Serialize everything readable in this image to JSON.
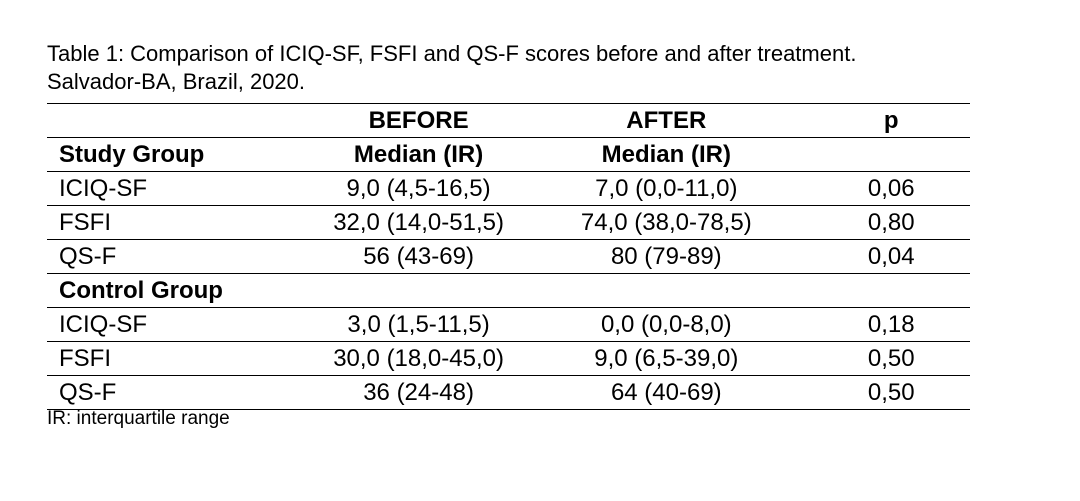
{
  "caption": {
    "line1": "Table 1: Comparison of ICIQ-SF, FSFI and QS-F scores before and after treatment.",
    "line2": "Salvador-BA, Brazil, 2020."
  },
  "header": {
    "before": "BEFORE",
    "after": "AFTER",
    "p": "p",
    "median_before": "Median (IR)",
    "median_after": "Median (IR)"
  },
  "groups": {
    "study": {
      "label": "Study Group",
      "rows": [
        {
          "measure": "ICIQ-SF",
          "before": "9,0 (4,5-16,5)",
          "after": "7,0 (0,0-11,0)",
          "p": "0,06"
        },
        {
          "measure": "FSFI",
          "before": "32,0 (14,0-51,5)",
          "after": "74,0 (38,0-78,5)",
          "p": "0,80"
        },
        {
          "measure": "QS-F",
          "before": "56 (43-69)",
          "after": "80 (79-89)",
          "p": "0,04"
        }
      ]
    },
    "control": {
      "label": "Control Group",
      "rows": [
        {
          "measure": "ICIQ-SF",
          "before": "3,0 (1,5-11,5)",
          "after": "0,0 (0,0-8,0)",
          "p": "0,18"
        },
        {
          "measure": "FSFI",
          "before": "30,0 (18,0-45,0)",
          "after": "9,0 (6,5-39,0)",
          "p": "0,50"
        },
        {
          "measure": "QS-F",
          "before": "36 (24-48)",
          "after": "64 (40-69)",
          "p": "0,50"
        }
      ]
    }
  },
  "footnote": "IR: interquartile range"
}
